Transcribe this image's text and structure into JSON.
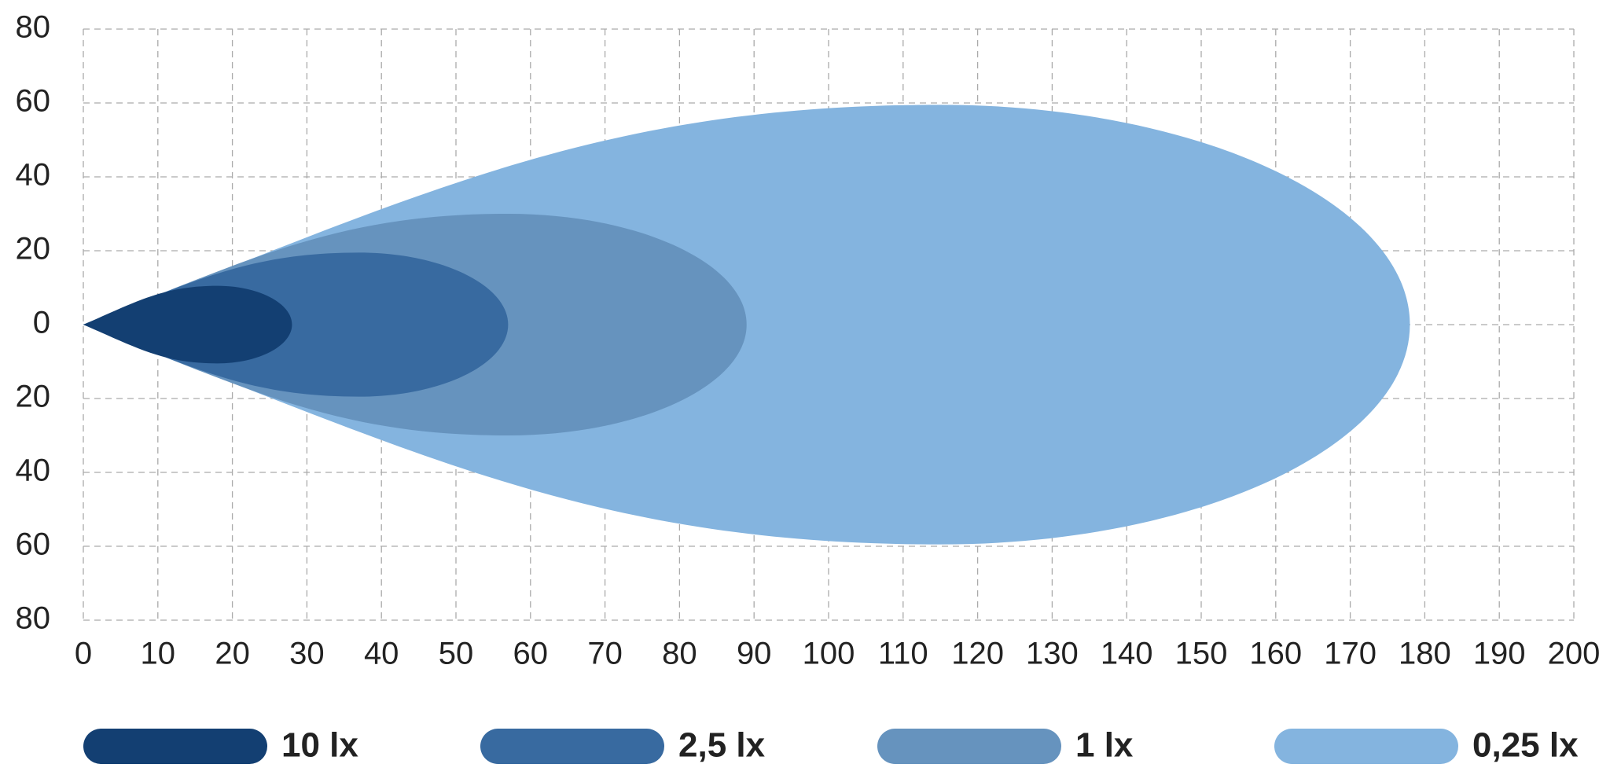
{
  "chart_data": {
    "type": "isolux",
    "series": [
      {
        "name": "10 lx",
        "color": "#133f72",
        "reach": 28,
        "half_width": 10.5,
        "peak_x": 18
      },
      {
        "name": "2,5 lx",
        "color": "#386aa0",
        "reach": 57,
        "half_width": 19.5,
        "peak_x": 37
      },
      {
        "name": "1 lx",
        "color": "#6693be",
        "reach": 89,
        "half_width": 30,
        "peak_x": 57
      },
      {
        "name": "0,25 lx",
        "color": "#84b4df",
        "reach": 178,
        "half_width": 59.5,
        "peak_x": 115
      }
    ],
    "xlim": [
      0,
      200
    ],
    "xticks": [
      0,
      10,
      20,
      30,
      40,
      50,
      60,
      70,
      80,
      90,
      100,
      110,
      120,
      130,
      140,
      150,
      160,
      170,
      180,
      190,
      200
    ],
    "ylim": [
      -80,
      80
    ],
    "yticks": [
      {
        "value": 80,
        "label": "80"
      },
      {
        "value": 60,
        "label": "60"
      },
      {
        "value": 40,
        "label": "40"
      },
      {
        "value": 20,
        "label": "20"
      },
      0,
      {
        "value": -20,
        "label": "20"
      },
      {
        "value": -40,
        "label": "40"
      },
      {
        "value": -60,
        "label": "60"
      },
      {
        "value": -80,
        "label": "80"
      }
    ],
    "grid": true
  }
}
